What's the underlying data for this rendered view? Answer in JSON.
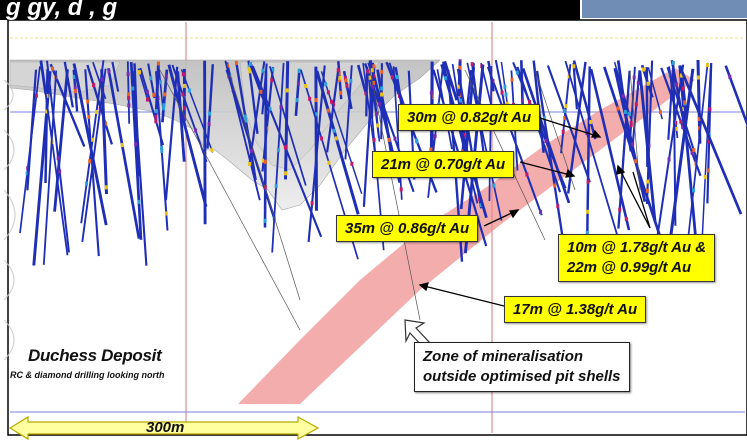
{
  "slide": {
    "title_fragment": "g gy, d   , g"
  },
  "deposit": {
    "title": "Duchess Deposit",
    "subtitle": "RC & diamond drilling looking north"
  },
  "callouts": [
    {
      "id": "c1",
      "text": "30m @ 0.82g/t Au"
    },
    {
      "id": "c2",
      "text": "21m @ 0.70g/t Au"
    },
    {
      "id": "c3",
      "text": "35m @ 0.86g/t Au"
    },
    {
      "id": "c4",
      "line1": "10m @ 1.78g/t Au &",
      "line2": "22m @ 0.99g/t Au"
    },
    {
      "id": "c5",
      "text": "17m @ 1.38g/t Au"
    }
  ],
  "mineralisation_note": {
    "line1": "Zone of mineralisation",
    "line2": "outside optimised pit shells"
  },
  "scale_bar": {
    "label": "300m"
  },
  "colors": {
    "callout_fill": "#ffff00",
    "zone_fill": "#f08a8a",
    "gridline_red": "#d97a7a",
    "gridline_blue": "#7a82d9",
    "scale_bar_fill": "#ffffa0"
  }
}
